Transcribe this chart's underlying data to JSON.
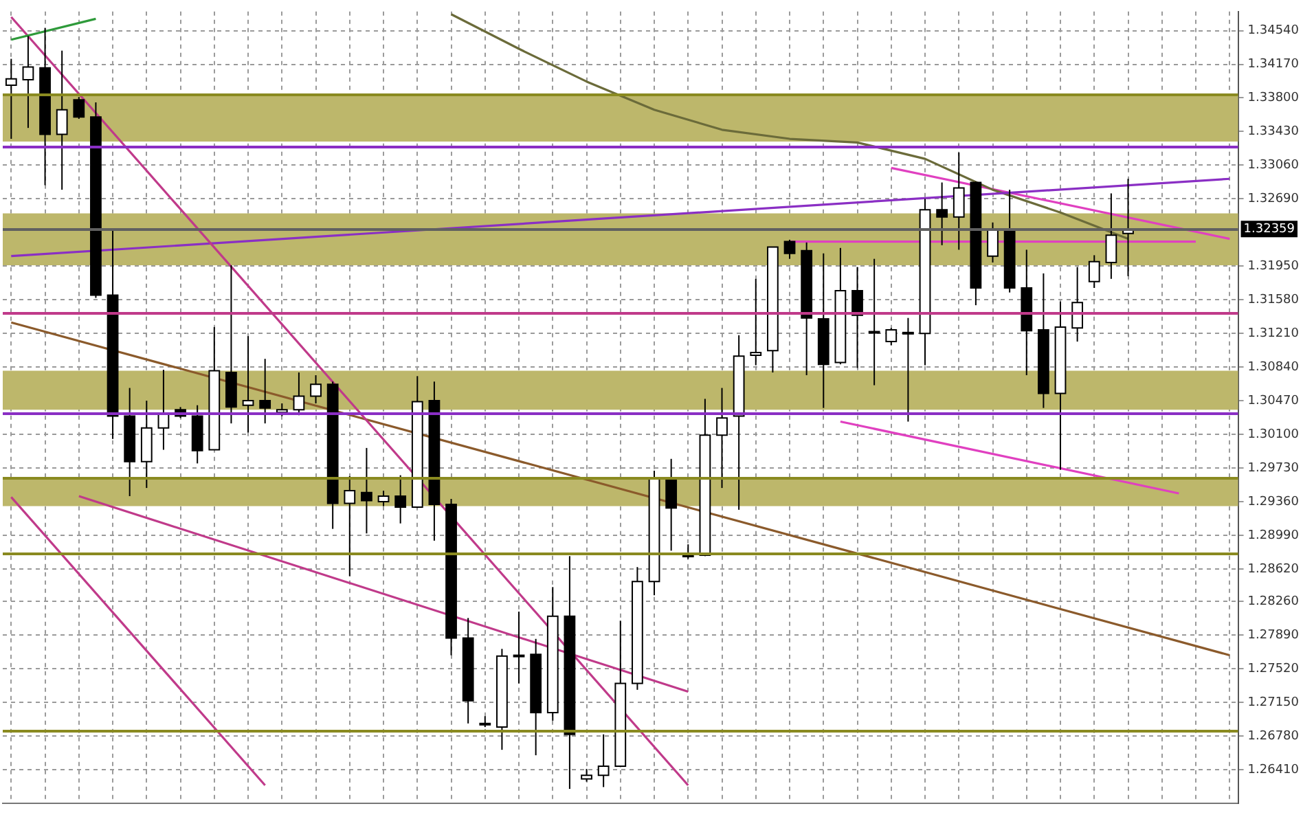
{
  "chart_data": {
    "type": "candlestick",
    "categories": [
      null,
      null,
      null,
      null,
      null,
      null,
      null,
      null,
      null,
      null,
      null,
      null,
      null,
      null,
      null,
      null,
      null,
      null,
      null,
      null,
      null,
      null,
      null,
      null,
      null,
      null,
      null,
      null,
      null,
      null,
      null,
      null,
      null,
      null,
      null,
      null,
      null,
      null,
      null,
      null,
      null,
      null,
      null,
      null,
      null,
      null,
      null,
      null,
      null,
      null,
      null,
      null,
      null,
      null,
      null,
      null,
      null,
      null,
      null,
      null,
      null,
      null,
      null,
      null,
      null,
      null,
      null,
      null,
      null,
      null,
      null,
      null,
      null
    ],
    "ohlc": [
      [
        1.3394,
        1.3423,
        1.3335,
        1.3401
      ],
      [
        1.34,
        1.3448,
        1.3347,
        1.3414
      ],
      [
        1.3413,
        1.3457,
        1.3284,
        1.334
      ],
      [
        1.334,
        1.3432,
        1.3279,
        1.3367
      ],
      [
        1.3378,
        1.3381,
        1.3357,
        1.3359
      ],
      [
        1.3359,
        1.3375,
        1.316,
        1.3163
      ],
      [
        1.3163,
        1.3235,
        1.3005,
        1.303
      ],
      [
        1.303,
        1.3061,
        1.2942,
        1.298
      ],
      [
        1.298,
        1.3047,
        1.2951,
        1.3017
      ],
      [
        1.3017,
        1.3081,
        1.2993,
        1.3033
      ],
      [
        1.3037,
        1.304,
        1.3028,
        1.303
      ],
      [
        1.303,
        1.3042,
        1.2978,
        1.2992
      ],
      [
        1.2993,
        1.3128,
        1.2993,
        1.308
      ],
      [
        1.3078,
        1.3196,
        1.3022,
        1.304
      ],
      [
        1.3042,
        1.3118,
        1.3012,
        1.3047
      ],
      [
        1.3047,
        1.3093,
        1.3022,
        1.3039
      ],
      [
        1.3034,
        1.3044,
        1.303,
        1.3037
      ],
      [
        1.3037,
        1.3078,
        1.3031,
        1.3052
      ],
      [
        1.3052,
        1.3075,
        1.3044,
        1.3065
      ],
      [
        1.3065,
        1.3068,
        1.2906,
        1.2934
      ],
      [
        1.2934,
        1.2964,
        1.2854,
        1.2948
      ],
      [
        1.2946,
        1.2995,
        1.2901,
        1.2937
      ],
      [
        1.2936,
        1.2948,
        1.2931,
        1.2942
      ],
      [
        1.2942,
        1.2965,
        1.2912,
        1.293
      ],
      [
        1.293,
        1.3074,
        1.2929,
        1.3046
      ],
      [
        1.3047,
        1.3068,
        1.2893,
        1.2933
      ],
      [
        1.2933,
        1.2939,
        1.2767,
        1.2786
      ],
      [
        1.2786,
        1.2808,
        1.2692,
        1.2717
      ],
      [
        1.2692,
        1.27,
        1.2688,
        1.2691
      ],
      [
        1.2688,
        1.2774,
        1.2663,
        1.2766
      ],
      [
        1.2766,
        1.2815,
        1.2736,
        1.2767
      ],
      [
        1.2768,
        1.2785,
        1.2657,
        1.2704
      ],
      [
        1.2704,
        1.2842,
        1.2695,
        1.281
      ],
      [
        1.281,
        1.2876,
        1.262,
        1.268
      ],
      [
        1.2631,
        1.2642,
        1.2628,
        1.2635
      ],
      [
        1.2635,
        1.268,
        1.2622,
        1.2645
      ],
      [
        1.2645,
        1.2805,
        1.2644,
        1.2736
      ],
      [
        1.2736,
        1.2864,
        1.2729,
        1.2848
      ],
      [
        1.2848,
        1.297,
        1.2833,
        1.2962
      ],
      [
        1.2962,
        1.2983,
        1.2882,
        1.2929
      ],
      [
        1.2876,
        1.2889,
        1.2873,
        1.2877
      ],
      [
        1.2877,
        1.3049,
        1.2876,
        1.3009
      ],
      [
        1.3009,
        1.3061,
        1.2951,
        1.3028
      ],
      [
        1.303,
        1.3119,
        1.2927,
        1.3096
      ],
      [
        1.3097,
        1.3181,
        1.3086,
        1.31
      ],
      [
        1.3102,
        1.3216,
        1.3078,
        1.3216
      ],
      [
        1.3222,
        1.3224,
        1.3203,
        1.3209
      ],
      [
        1.3212,
        1.3221,
        1.3075,
        1.3138
      ],
      [
        1.3137,
        1.3209,
        1.3039,
        1.3087
      ],
      [
        1.3089,
        1.3215,
        1.3087,
        1.3168
      ],
      [
        1.3168,
        1.3194,
        1.3083,
        1.3141
      ],
      [
        1.3123,
        1.3203,
        1.3064,
        1.3122
      ],
      [
        1.3112,
        1.3127,
        1.3108,
        1.3125
      ],
      [
        1.3122,
        1.3138,
        1.3024,
        1.3122
      ],
      [
        1.3121,
        1.3269,
        1.3086,
        1.3257
      ],
      [
        1.3257,
        1.3287,
        1.3218,
        1.3249
      ],
      [
        1.3249,
        1.332,
        1.3213,
        1.3281
      ],
      [
        1.3287,
        1.3288,
        1.3152,
        1.3171
      ],
      [
        1.3206,
        1.3243,
        1.3199,
        1.3235
      ],
      [
        1.3235,
        1.3279,
        1.3166,
        1.3171
      ],
      [
        1.3171,
        1.3213,
        1.3075,
        1.3124
      ],
      [
        1.3125,
        1.3187,
        1.3039,
        1.3055
      ],
      [
        1.3055,
        1.3156,
        1.2971,
        1.3128
      ],
      [
        1.3127,
        1.3194,
        1.3112,
        1.3155
      ],
      [
        1.3178,
        1.3207,
        1.3171,
        1.32
      ],
      [
        1.3199,
        1.3275,
        1.3181,
        1.3229
      ],
      [
        1.3231,
        1.3291,
        1.3184,
        1.3236
      ],
      null,
      null,
      null,
      null,
      null,
      null
    ],
    "series": [
      {
        "type": "line",
        "color": "#2e9a3a",
        "values": [
          1.3444,
          null,
          null,
          null,
          null,
          1.3467,
          null,
          null,
          null,
          null,
          null,
          null,
          null,
          null,
          null,
          null,
          null,
          null,
          null,
          null,
          null,
          null,
          null,
          null,
          null,
          null,
          null,
          null,
          null,
          null,
          null,
          null,
          null,
          null,
          null,
          null,
          null,
          null,
          null,
          null,
          null,
          null,
          null,
          null,
          null,
          null,
          null,
          null,
          null,
          null,
          null,
          null,
          null,
          null,
          null,
          null,
          null,
          null,
          null,
          null,
          null,
          null,
          null,
          null,
          null,
          null,
          null,
          null,
          null,
          null,
          null,
          null,
          null
        ]
      },
      {
        "type": "line",
        "color": "#c03a8a",
        "values": [
          1.3469,
          null,
          null,
          null,
          null,
          null,
          null,
          null,
          null,
          null,
          null,
          null,
          null,
          null,
          null,
          null,
          null,
          null,
          null,
          null,
          null,
          null,
          null,
          null,
          null,
          null,
          null,
          null,
          null,
          null,
          null,
          null,
          null,
          null,
          null,
          null,
          null,
          null,
          null,
          null,
          1.2624,
          null,
          null,
          null,
          null,
          null,
          null,
          null,
          null,
          null,
          null,
          null,
          null,
          null,
          null,
          null,
          null,
          null,
          null,
          null,
          null,
          null,
          null,
          null,
          null,
          null,
          null,
          null,
          null,
          null,
          null,
          null,
          null
        ]
      },
      {
        "type": "line",
        "color": "#c03a8a",
        "values": [
          1.2941,
          null,
          null,
          null,
          null,
          null,
          null,
          null,
          null,
          null,
          null,
          null,
          null,
          null,
          null,
          1.2624,
          null,
          null,
          null,
          null,
          null,
          null,
          null,
          null,
          null,
          null,
          null,
          null,
          null,
          null,
          null,
          null,
          null,
          null,
          null,
          null,
          null,
          null,
          null,
          null,
          null,
          null,
          null,
          null,
          null,
          null,
          null,
          null,
          null,
          null,
          null,
          null,
          null,
          null,
          null,
          null,
          null,
          null,
          null,
          null,
          null,
          null,
          null,
          null,
          null,
          null,
          null,
          null,
          null,
          null,
          null,
          null,
          null
        ]
      },
      {
        "type": "line",
        "color": "#c03a8a",
        "values": [
          null,
          null,
          null,
          null,
          1.2942,
          null,
          null,
          null,
          null,
          null,
          null,
          null,
          null,
          null,
          null,
          null,
          null,
          null,
          null,
          null,
          null,
          null,
          null,
          null,
          null,
          null,
          null,
          null,
          null,
          null,
          null,
          null,
          null,
          null,
          null,
          null,
          null,
          null,
          null,
          null,
          1.2727,
          null,
          null,
          null,
          null,
          null,
          null,
          null,
          null,
          null,
          null,
          null,
          null,
          null,
          null,
          null,
          null,
          null,
          null,
          null,
          null,
          null,
          null,
          null,
          null,
          null,
          null,
          null,
          null,
          null,
          null,
          null,
          null
        ]
      },
      {
        "type": "line",
        "color": "#8b5a2b",
        "values": [
          1.3133,
          null,
          null,
          null,
          null,
          null,
          null,
          null,
          null,
          null,
          null,
          null,
          null,
          null,
          null,
          null,
          null,
          null,
          null,
          null,
          null,
          null,
          null,
          null,
          null,
          null,
          null,
          null,
          null,
          null,
          null,
          null,
          null,
          null,
          null,
          null,
          null,
          null,
          null,
          null,
          null,
          null,
          null,
          null,
          null,
          null,
          null,
          null,
          null,
          null,
          null,
          null,
          null,
          null,
          null,
          null,
          null,
          null,
          null,
          null,
          null,
          null,
          null,
          null,
          null,
          null,
          null,
          null,
          null,
          null,
          null,
          null,
          1.2767
        ]
      },
      {
        "type": "line",
        "color": "#8a2fc4",
        "values": [
          1.3206,
          null,
          null,
          null,
          null,
          null,
          null,
          null,
          null,
          null,
          null,
          null,
          null,
          null,
          null,
          null,
          null,
          null,
          null,
          null,
          null,
          null,
          null,
          null,
          null,
          null,
          null,
          null,
          null,
          null,
          null,
          null,
          null,
          null,
          null,
          null,
          null,
          null,
          null,
          null,
          null,
          null,
          null,
          null,
          null,
          null,
          null,
          null,
          null,
          null,
          null,
          null,
          null,
          null,
          null,
          null,
          null,
          null,
          null,
          null,
          null,
          null,
          null,
          null,
          null,
          null,
          null,
          null,
          null,
          null,
          null,
          null,
          1.3291
        ]
      },
      {
        "type": "line",
        "color": "#6b6b3a",
        "values": [
          null,
          null,
          null,
          null,
          null,
          null,
          null,
          null,
          null,
          null,
          null,
          null,
          null,
          null,
          null,
          null,
          null,
          null,
          null,
          null,
          null,
          null,
          null,
          null,
          null,
          null,
          1.3472,
          null,
          null,
          null,
          1.3434,
          null,
          null,
          null,
          1.3398,
          null,
          null,
          null,
          1.3367,
          null,
          null,
          null,
          1.3345,
          null,
          null,
          null,
          1.3335,
          null,
          null,
          null,
          1.3331,
          null,
          null,
          null,
          1.3313,
          null,
          null,
          null,
          1.3279,
          null,
          null,
          null,
          1.3254,
          null,
          null,
          null,
          1.3225,
          null,
          null,
          null,
          null,
          null,
          null
        ]
      },
      {
        "type": "line",
        "color": "#e040c0",
        "values": [
          null,
          null,
          null,
          null,
          null,
          null,
          null,
          null,
          null,
          null,
          null,
          null,
          null,
          null,
          null,
          null,
          null,
          null,
          null,
          null,
          null,
          null,
          null,
          null,
          null,
          null,
          null,
          null,
          null,
          null,
          null,
          null,
          null,
          null,
          null,
          null,
          null,
          null,
          null,
          null,
          null,
          null,
          null,
          null,
          null,
          null,
          null,
          null,
          null,
          null,
          null,
          null,
          1.3303,
          null,
          null,
          null,
          null,
          null,
          null,
          null,
          null,
          null,
          null,
          null,
          null,
          null,
          null,
          null,
          null,
          null,
          null,
          null,
          1.3225
        ]
      },
      {
        "type": "line",
        "color": "#e040c0",
        "values": [
          null,
          null,
          null,
          null,
          null,
          null,
          null,
          null,
          null,
          null,
          null,
          null,
          null,
          null,
          null,
          null,
          null,
          null,
          null,
          null,
          null,
          null,
          null,
          null,
          null,
          null,
          null,
          null,
          null,
          null,
          null,
          null,
          null,
          null,
          null,
          null,
          null,
          null,
          null,
          null,
          null,
          null,
          null,
          null,
          null,
          null,
          null,
          null,
          null,
          1.3024,
          null,
          null,
          null,
          null,
          null,
          null,
          null,
          null,
          null,
          null,
          null,
          null,
          null,
          null,
          null,
          null,
          null,
          null,
          null,
          1.2945,
          null,
          null,
          null
        ]
      },
      {
        "type": "line",
        "color": "#e040c0",
        "values": [
          null,
          null,
          null,
          null,
          null,
          null,
          null,
          null,
          null,
          null,
          null,
          null,
          null,
          null,
          null,
          null,
          null,
          null,
          null,
          null,
          null,
          null,
          null,
          null,
          null,
          null,
          null,
          null,
          null,
          null,
          null,
          null,
          null,
          null,
          null,
          null,
          null,
          null,
          null,
          null,
          null,
          null,
          null,
          null,
          null,
          null,
          1.3222,
          null,
          null,
          null,
          null,
          null,
          null,
          null,
          null,
          null,
          null,
          null,
          null,
          null,
          null,
          null,
          null,
          null,
          null,
          null,
          null,
          null,
          null,
          null,
          1.3222,
          null,
          null
        ]
      }
    ],
    "ylim": [
      1.2604,
      1.3475
    ],
    "yticks": [
      {
        "value": 1.3454,
        "label": "1.34540"
      },
      {
        "value": 1.3417,
        "label": "1.34170"
      },
      {
        "value": 1.338,
        "label": "1.33800"
      },
      {
        "value": 1.3343,
        "label": "1.33430"
      },
      {
        "value": 1.3306,
        "label": "1.33060"
      },
      {
        "value": 1.3269,
        "label": "1.32690"
      },
      {
        "value": 1.3195,
        "label": "1.31950"
      },
      {
        "value": 1.3158,
        "label": "1.31580"
      },
      {
        "value": 1.3121,
        "label": "1.31210"
      },
      {
        "value": 1.3084,
        "label": "1.30840"
      },
      {
        "value": 1.3047,
        "label": "1.30470"
      },
      {
        "value": 1.301,
        "label": "1.30100"
      },
      {
        "value": 1.2973,
        "label": "1.29730"
      },
      {
        "value": 1.2936,
        "label": "1.29360"
      },
      {
        "value": 1.2899,
        "label": "1.28990"
      },
      {
        "value": 1.2862,
        "label": "1.28620"
      },
      {
        "value": 1.2826,
        "label": "1.28260"
      },
      {
        "value": 1.2789,
        "label": "1.27890"
      },
      {
        "value": 1.2752,
        "label": "1.27520"
      },
      {
        "value": 1.2715,
        "label": "1.27150"
      },
      {
        "value": 1.2678,
        "label": "1.26780"
      },
      {
        "value": 1.2641,
        "label": "1.26410"
      }
    ],
    "ref_lines": [
      {
        "axis": "y",
        "value": 1.3383,
        "color": "#8a8a20"
      },
      {
        "axis": "y",
        "value": 1.3326,
        "color": "#8a2fc4"
      },
      {
        "axis": "y",
        "value": 1.3143,
        "color": "#c03a8a"
      },
      {
        "axis": "y",
        "value": 1.3032,
        "color": "#8a2fc4"
      },
      {
        "axis": "y",
        "value": 1.2962,
        "color": "#8a8a20"
      },
      {
        "axis": "y",
        "value": 1.2879,
        "color": "#8a8a20"
      },
      {
        "axis": "y",
        "value": 1.2684,
        "color": "#8a8a20"
      },
      {
        "axis": "y",
        "value": 1.32359,
        "label": "1.32359",
        "color": "#606060"
      }
    ],
    "bands": [
      {
        "axis": "y",
        "from": 1.3332,
        "to": 1.3383,
        "color": "#bdb76b"
      },
      {
        "axis": "y",
        "from": 1.3196,
        "to": 1.3253,
        "color": "#bdb76b"
      },
      {
        "axis": "y",
        "from": 1.3037,
        "to": 1.308,
        "color": "#bdb76b"
      },
      {
        "axis": "y",
        "from": 1.2931,
        "to": 1.2962,
        "color": "#bdb76b"
      }
    ],
    "grid": true,
    "legend": false,
    "tick_labels": "y",
    "marker": "none",
    "line_style": "solid"
  }
}
